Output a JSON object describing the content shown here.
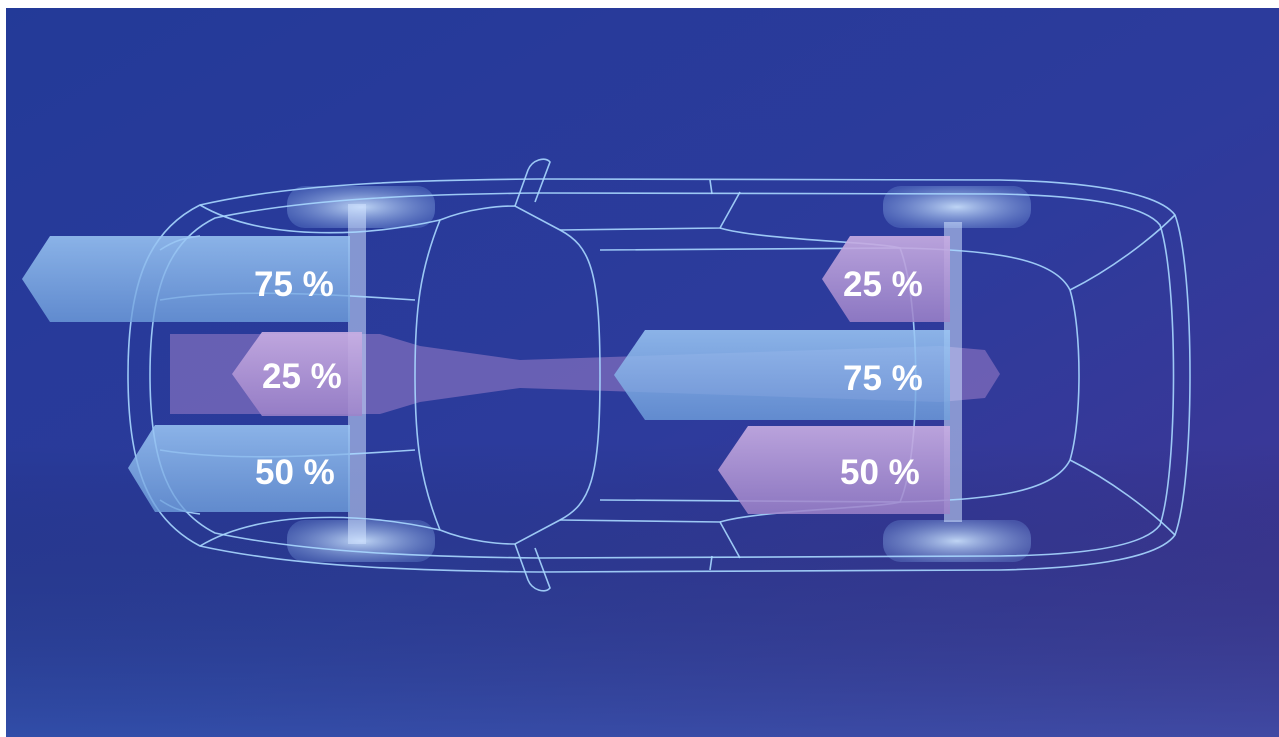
{
  "colors": {
    "background_left": "#2a3f9e",
    "background_right": "#3a3592",
    "outline": "#a8d8ff",
    "arrow_blue": "#7aaee6",
    "arrow_pink": "#b79bd6"
  },
  "labels": {
    "front_top": "75 %",
    "front_middle": "25 %",
    "front_bottom": "50 %",
    "rear_top": "25 %",
    "rear_middle": "75 %",
    "rear_bottom": "50 %"
  },
  "icons": {
    "car": "car-top-view-outline"
  }
}
